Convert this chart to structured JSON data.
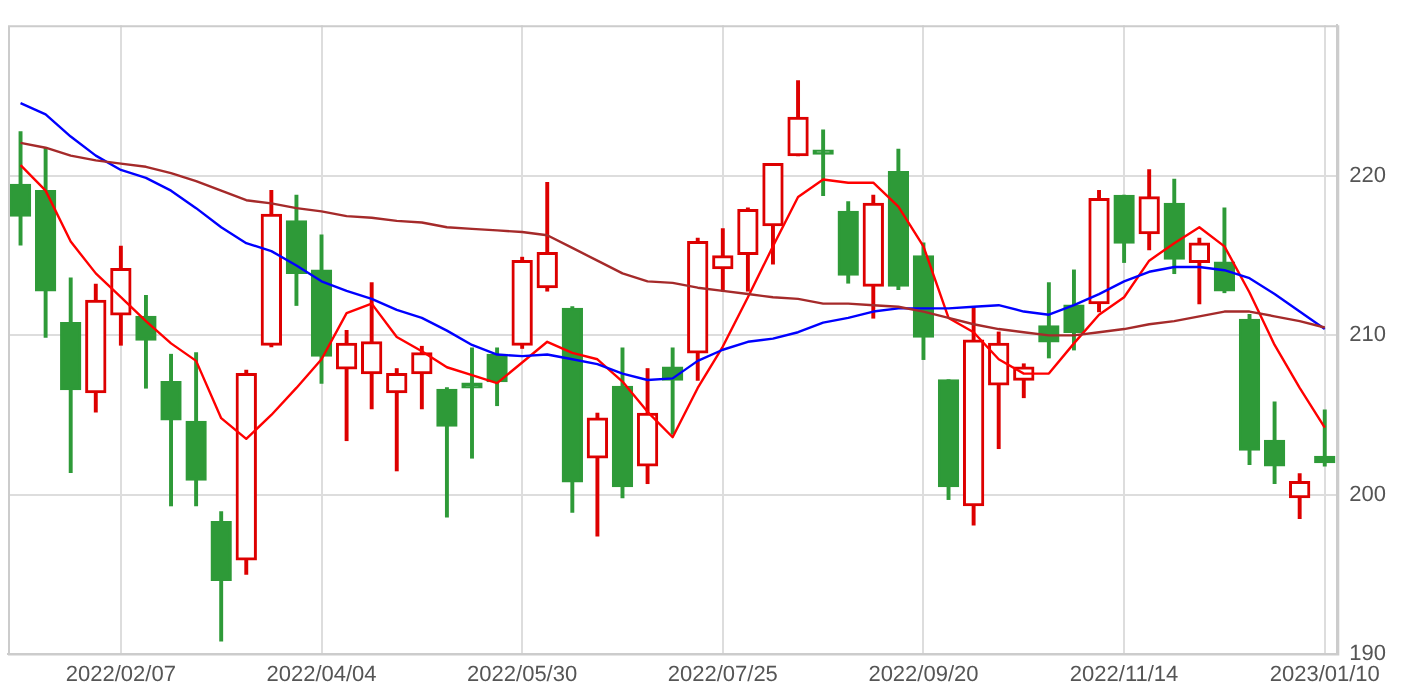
{
  "chart_data": {
    "type": "candlestick",
    "categories": [
      null,
      null,
      null,
      null,
      "2022/02/07",
      null,
      null,
      null,
      null,
      null,
      null,
      null,
      "2022/04/04",
      null,
      null,
      null,
      null,
      null,
      null,
      null,
      "2022/05/30",
      null,
      null,
      null,
      null,
      null,
      null,
      null,
      "2022/07/25",
      null,
      null,
      null,
      null,
      null,
      null,
      null,
      "2022/09/20",
      null,
      null,
      null,
      null,
      null,
      null,
      null,
      "2022/11/14",
      null,
      null,
      null,
      null,
      null,
      null,
      null,
      "2023/01/10"
    ],
    "series": [
      {
        "type": "line",
        "color": "#a52a2a",
        "values": [
          222.1,
          221.8,
          221.3,
          221.0,
          220.8,
          220.6,
          220.2,
          219.7,
          219.1,
          218.5,
          218.3,
          218.0,
          217.8,
          217.5,
          217.4,
          217.2,
          217.1,
          216.8,
          216.7,
          216.6,
          216.5,
          216.3,
          215.5,
          214.7,
          213.9,
          213.4,
          213.3,
          213.0,
          212.8,
          212.6,
          212.4,
          212.3,
          212.0,
          212.0,
          211.9,
          211.8,
          211.5,
          211.1,
          210.7,
          210.4,
          210.2,
          210.0,
          210.0,
          210.2,
          210.4,
          210.7,
          210.9,
          211.2,
          211.5,
          211.5,
          211.2,
          210.9,
          210.5
        ]
      },
      {
        "type": "line",
        "color": "#0000ff",
        "values": [
          224.6,
          223.9,
          222.5,
          221.3,
          220.4,
          219.9,
          219.1,
          218.0,
          216.8,
          215.8,
          215.3,
          214.4,
          213.4,
          212.8,
          212.3,
          211.6,
          211.1,
          210.3,
          209.4,
          208.8,
          208.7,
          208.8,
          208.5,
          208.2,
          207.6,
          207.2,
          207.3,
          208.4,
          209.1,
          209.6,
          209.8,
          210.2,
          210.8,
          211.1,
          211.5,
          211.7,
          211.7,
          211.7,
          211.8,
          211.9,
          211.5,
          211.3,
          211.9,
          212.6,
          213.4,
          214.0,
          214.3,
          214.3,
          214.1,
          213.6,
          212.6,
          211.5,
          210.4
        ]
      },
      {
        "type": "line",
        "color": "#ff0000",
        "values": [
          220.7,
          219.1,
          215.9,
          213.9,
          212.4,
          210.9,
          209.5,
          208.4,
          204.8,
          203.5,
          205.0,
          206.7,
          208.5,
          211.4,
          212.0,
          209.9,
          209.0,
          208.0,
          207.5,
          207.0,
          208.3,
          209.6,
          208.9,
          208.5,
          207.1,
          205.2,
          203.6,
          206.7,
          209.3,
          212.4,
          215.6,
          218.7,
          219.8,
          219.6,
          219.6,
          218.1,
          215.6,
          211.1,
          210.2,
          208.5,
          207.6,
          207.6,
          209.5,
          211.3,
          212.4,
          214.7,
          215.8,
          216.8,
          215.6,
          212.7,
          209.4,
          206.7,
          204.2
        ]
      },
      {
        "colors": [
          "#2e9a38",
          "#2e9a38",
          "#2e9a38",
          "#dd0000",
          "#dd0000",
          "#2e9a38",
          "#2e9a38",
          "#2e9a38",
          "#2e9a38",
          "#dd0000",
          "#dd0000",
          "#2e9a38",
          "#2e9a38",
          "#dd0000",
          "#dd0000",
          "#dd0000",
          "#dd0000",
          "#2e9a38",
          "#2e9a38",
          "#2e9a38",
          "#dd0000",
          "#dd0000",
          "#2e9a38",
          "#dd0000",
          "#2e9a38",
          "#dd0000",
          "#2e9a38",
          "#dd0000",
          "#dd0000",
          "#dd0000",
          "#dd0000",
          "#dd0000",
          "#2e9a38",
          "#2e9a38",
          "#dd0000",
          "#2e9a38",
          "#2e9a38",
          "#2e9a38",
          "#dd0000",
          "#dd0000",
          "#dd0000",
          "#2e9a38",
          "#2e9a38",
          "#dd0000",
          "#2e9a38",
          "#dd0000",
          "#2e9a38",
          "#dd0000",
          "#2e9a38",
          "#2e9a38",
          "#2e9a38",
          "#dd0000",
          "#2e9a38"
        ],
        "ohlc": [
          [
            219.5,
            222.8,
            215.7,
            217.5
          ],
          [
            219.1,
            221.8,
            209.9,
            212.8
          ],
          [
            210.8,
            213.6,
            201.4,
            206.6
          ],
          [
            206.4,
            213.2,
            205.2,
            212.2
          ],
          [
            211.3,
            215.6,
            209.4,
            214.2
          ],
          [
            211.2,
            212.5,
            206.7,
            209.7
          ],
          [
            207.1,
            208.8,
            199.3,
            204.7
          ],
          [
            204.6,
            208.9,
            199.3,
            200.9
          ],
          [
            198.3,
            198.9,
            190.8,
            194.6
          ],
          [
            195.9,
            207.8,
            195.0,
            207.6
          ],
          [
            209.4,
            219.1,
            209.3,
            217.6
          ],
          [
            217.2,
            218.8,
            211.9,
            213.9
          ],
          [
            214.1,
            216.3,
            207.0,
            208.7
          ],
          [
            207.9,
            210.3,
            203.4,
            209.5
          ],
          [
            207.6,
            213.3,
            205.4,
            209.6
          ],
          [
            206.4,
            207.9,
            201.5,
            207.6
          ],
          [
            207.6,
            209.3,
            205.4,
            208.9
          ],
          [
            206.6,
            206.7,
            198.6,
            204.3
          ],
          [
            207.0,
            209.2,
            202.3,
            206.7
          ],
          [
            208.8,
            209.2,
            205.6,
            207.1
          ],
          [
            209.4,
            214.9,
            209.2,
            214.7
          ],
          [
            213.0,
            219.6,
            212.8,
            215.2
          ],
          [
            211.7,
            211.8,
            198.9,
            200.8
          ],
          [
            202.3,
            205.1,
            197.4,
            204.8
          ],
          [
            206.8,
            209.2,
            199.8,
            200.5
          ],
          [
            201.8,
            207.9,
            200.7,
            205.1
          ],
          [
            208.0,
            209.2,
            203.8,
            207.2
          ],
          [
            208.9,
            216.1,
            207.2,
            215.9
          ],
          [
            214.2,
            216.7,
            212.8,
            215.0
          ],
          [
            215.1,
            218.0,
            212.8,
            217.9
          ],
          [
            216.9,
            220.8,
            214.5,
            220.8
          ],
          [
            221.3,
            226.0,
            221.3,
            223.7
          ],
          [
            221.5,
            222.9,
            218.8,
            221.4
          ],
          [
            217.8,
            218.4,
            213.3,
            213.8
          ],
          [
            213.1,
            218.8,
            211.1,
            218.3
          ],
          [
            220.3,
            221.7,
            212.9,
            213.1
          ],
          [
            215.0,
            215.8,
            208.5,
            209.9
          ],
          [
            207.2,
            207.2,
            199.7,
            200.5
          ],
          [
            199.3,
            211.8,
            198.1,
            209.7
          ],
          [
            206.9,
            210.2,
            202.9,
            209.5
          ],
          [
            207.2,
            208.2,
            206.1,
            208.0
          ],
          [
            210.6,
            213.3,
            208.6,
            209.6
          ],
          [
            211.9,
            214.1,
            209.1,
            210.2
          ],
          [
            212.0,
            219.1,
            211.5,
            218.6
          ],
          [
            218.8,
            218.8,
            214.6,
            215.8
          ],
          [
            216.4,
            220.4,
            215.4,
            218.7
          ],
          [
            218.3,
            219.8,
            213.9,
            214.8
          ],
          [
            214.6,
            216.1,
            212.0,
            215.8
          ],
          [
            214.6,
            218.0,
            212.7,
            212.8
          ],
          [
            211.0,
            211.3,
            201.9,
            202.8
          ],
          [
            203.4,
            205.8,
            200.7,
            201.8
          ],
          [
            199.8,
            201.3,
            198.5,
            200.8
          ],
          [
            202.4,
            205.3,
            201.8,
            202.0
          ]
        ]
      }
    ],
    "ylim": [
      190,
      229.5
    ],
    "yticks": [
      190,
      200,
      210,
      220
    ],
    "grid": true,
    "marker": "none"
  }
}
